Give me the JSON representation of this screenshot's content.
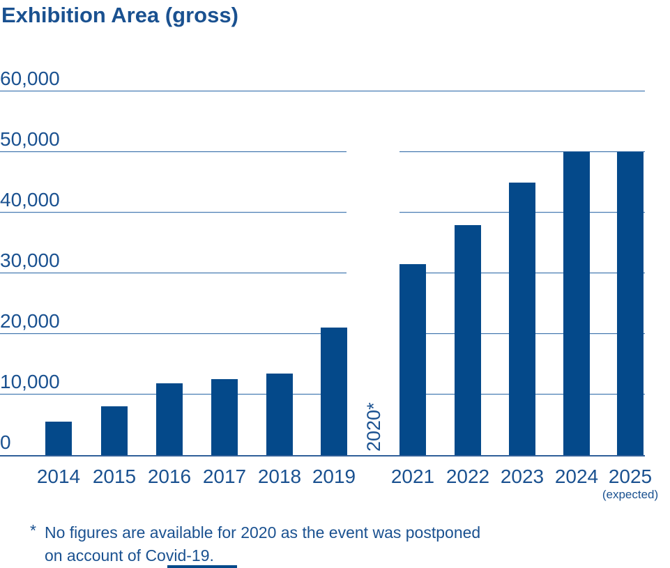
{
  "title": "Exhibition Area (gross)",
  "chart_data": {
    "type": "bar",
    "title": "Exhibition Area (gross)",
    "categories": [
      "2014",
      "2015",
      "2016",
      "2017",
      "2018",
      "2019",
      "2020",
      "2021",
      "2022",
      "2023",
      "2024",
      "2025"
    ],
    "values": [
      5500,
      8100,
      11800,
      12500,
      13500,
      21000,
      null,
      31500,
      38000,
      45000,
      50000,
      50000
    ],
    "missing_label": "2020*",
    "expected_note": "(expected)",
    "xlabel": "",
    "ylabel": "",
    "ylim": [
      0,
      60000
    ],
    "yticks": [
      0,
      10000,
      20000,
      30000,
      40000,
      50000,
      60000
    ],
    "ytick_labels": [
      "0",
      "10,000",
      "20,000",
      "30,000",
      "40,000",
      "50,000",
      "60,000"
    ],
    "grid": true,
    "legend": false,
    "bar_color": "#04498a"
  },
  "footnote": {
    "marker": "*",
    "line1": "No figures are available for 2020 as the event was postponed",
    "line2": "on account of Covid-19."
  },
  "colors": {
    "bar": "#04498a",
    "text": "#1a5190",
    "grid": "#4a7aae",
    "grid_light": "#cfe1f2",
    "axis": "#2f5f99",
    "background": "#ffffff"
  }
}
